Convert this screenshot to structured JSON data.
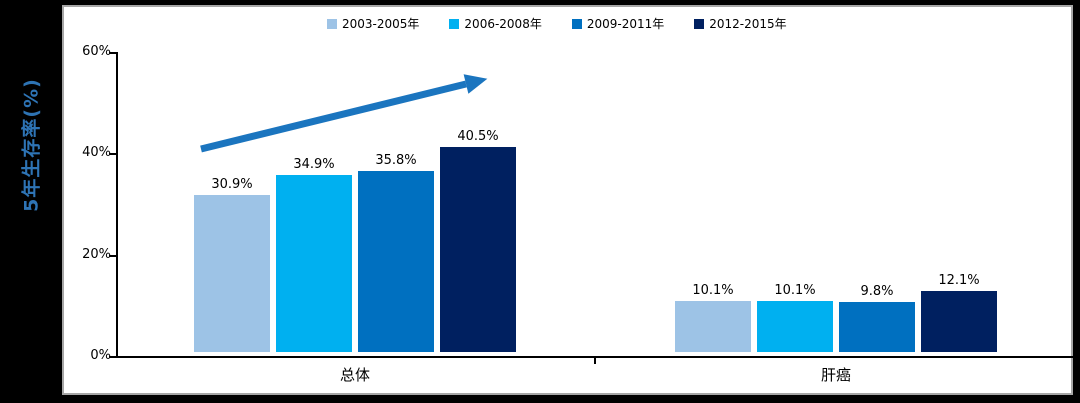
{
  "y_axis": {
    "title": "5年生存率(%)",
    "tick_labels": [
      "0%",
      "20%",
      "40%",
      "60%"
    ]
  },
  "x_axis": {
    "category_labels": [
      "总体",
      "肝癌"
    ]
  },
  "legend": {
    "items": [
      {
        "label": "2003-2005年",
        "color": "#9DC3E6"
      },
      {
        "label": "2006-2008年",
        "color": "#00B0F0"
      },
      {
        "label": "2009-2011年",
        "color": "#0070C0"
      },
      {
        "label": "2012-2015年",
        "color": "#002060"
      }
    ]
  },
  "colors": {
    "background": "#000000",
    "panel": "#FFFFFF",
    "panel_border": "#A6A6A6",
    "axis": "#000000",
    "text": "#000000",
    "y_axis_title": "#2E74B5",
    "trend_arrow": "#1B75BF"
  },
  "chart_data": {
    "type": "bar",
    "title": "",
    "xlabel": "",
    "ylabel": "5年生存率(%)",
    "categories": [
      "总体",
      "肝癌"
    ],
    "series": [
      {
        "name": "2003-2005年",
        "color": "#9DC3E6",
        "values": [
          30.9,
          10.1
        ]
      },
      {
        "name": "2006-2008年",
        "color": "#00B0F0",
        "values": [
          34.9,
          10.1
        ]
      },
      {
        "name": "2009-2011年",
        "color": "#0070C0",
        "values": [
          35.8,
          9.8
        ]
      },
      {
        "name": "2012-2015年",
        "color": "#002060",
        "values": [
          40.5,
          12.1
        ]
      }
    ],
    "data_labels": [
      [
        "30.9%",
        "34.9%",
        "35.8%",
        "40.5%"
      ],
      [
        "10.1%",
        "10.1%",
        "9.8%",
        "12.1%"
      ]
    ],
    "ylim": [
      0,
      60
    ],
    "y_ticks": [
      0,
      20,
      40,
      60
    ],
    "y_tick_labels": [
      "0%",
      "20%",
      "40%",
      "60%"
    ],
    "grid": false,
    "legend_position": "top",
    "annotations": [
      {
        "type": "arrow",
        "meaning": "upward trend across the 总体 group bars"
      }
    ]
  }
}
